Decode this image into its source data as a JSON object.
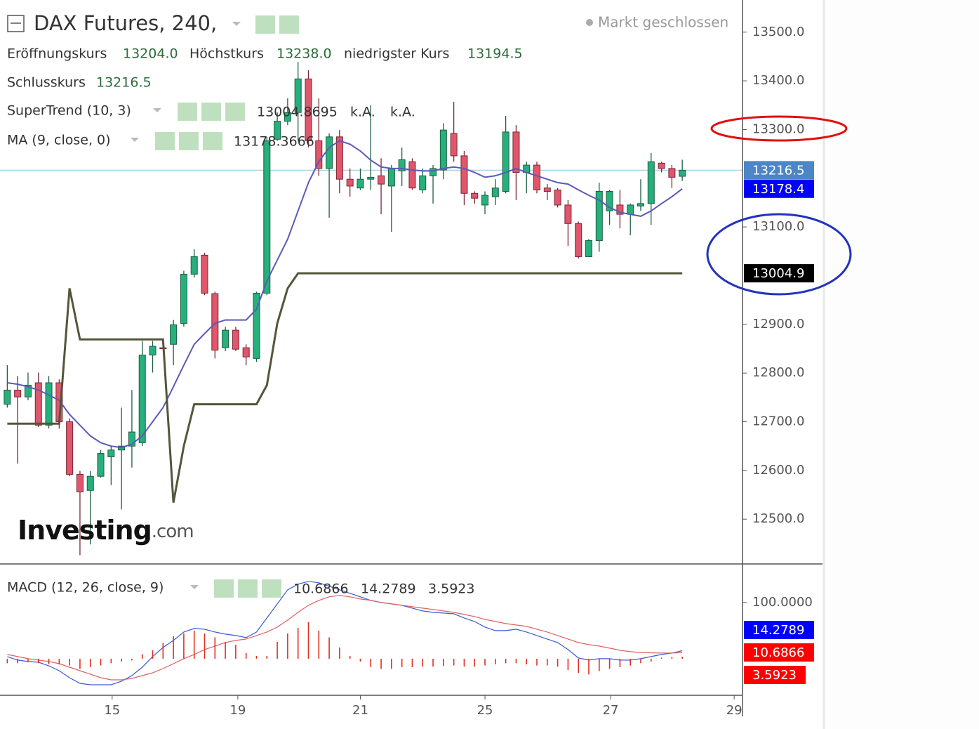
{
  "header": {
    "title": "DAX Futures, 240,",
    "status": "Markt geschlossen",
    "ohlc": [
      {
        "label": "Eröffnungskurs",
        "value": "13204.0"
      },
      {
        "label": "Höchstkurs",
        "value": "13238.0"
      },
      {
        "label": "niedrigster Kurs",
        "value": "13194.5"
      },
      {
        "label": "Schlusskurs",
        "value": "13216.5"
      }
    ]
  },
  "indicators": [
    {
      "name": "SuperTrend (10, 3)",
      "values": [
        "13004.8695",
        "k.A.",
        "k.A."
      ],
      "colors": [
        "#000000",
        "#555555",
        "#555555"
      ]
    },
    {
      "name": "MA (9, close, 0)",
      "values": [
        "13178.3666"
      ],
      "colors": [
        "#1a1aa8"
      ]
    },
    {
      "name": "MACD (12, 26, close, 9)",
      "values": [
        "10.6866",
        "14.2789",
        "3.5923"
      ],
      "colors": [
        "#e00000",
        "#1a1ad0",
        "#e00000"
      ]
    }
  ],
  "logo": [
    "Investing",
    ".com"
  ],
  "chart_data": [
    {
      "type": "candlestick",
      "x": [
        0,
        1,
        2,
        3,
        4,
        5,
        6,
        7,
        8,
        9,
        10,
        11,
        12,
        13,
        14,
        15,
        16,
        17,
        18,
        19,
        20,
        21,
        22,
        23,
        24,
        25,
        26,
        27,
        28,
        29,
        30,
        31,
        32,
        33,
        34,
        35,
        36,
        37,
        38,
        39,
        40,
        41,
        42,
        43,
        44,
        45,
        46,
        47,
        48,
        49,
        50,
        51,
        52,
        53,
        54,
        55,
        56,
        57,
        58,
        59,
        60,
        61,
        62,
        63,
        64,
        65
      ],
      "open": [
        12736,
        12765,
        12751,
        12780,
        12693,
        12780,
        12700,
        12592,
        12559,
        12588,
        12628,
        12642,
        12650,
        12657,
        12837,
        12852,
        12859,
        12902,
        13003,
        13042,
        12963,
        12852,
        12888,
        12852,
        12830,
        12964,
        13280,
        13317,
        13335,
        13404,
        13277,
        13220,
        13285,
        13198,
        13180,
        13198,
        13205,
        13184,
        13215,
        13234,
        13176,
        13205,
        13217,
        13292,
        13246,
        13169,
        13145,
        13162,
        13173,
        13295,
        13212,
        13227,
        13180,
        13176,
        13145,
        13107,
        13039,
        13072,
        13133,
        13145,
        13126,
        13143,
        13148,
        13231,
        13220,
        13204
      ],
      "high": [
        12816,
        12794,
        12801,
        12801,
        12794,
        12787,
        12707,
        12599,
        12599,
        12642,
        12650,
        12729,
        12765,
        12866,
        12866,
        12855,
        12909,
        13010,
        13054,
        13047,
        12967,
        12895,
        12895,
        12859,
        12967,
        13285,
        13335,
        13364,
        13439,
        13422,
        13364,
        13292,
        13299,
        13220,
        13220,
        13350,
        13241,
        13227,
        13263,
        13241,
        13220,
        13227,
        13313,
        13357,
        13256,
        13173,
        13173,
        13198,
        13328,
        13309,
        13234,
        13234,
        13188,
        13180,
        13155,
        13111,
        13075,
        13191,
        13176,
        13176,
        13148,
        13198,
        13252,
        13234,
        13227,
        13238
      ],
      "low": [
        12729,
        12614,
        12744,
        12689,
        12686,
        12686,
        12588,
        12426,
        12448,
        12585,
        12570,
        12520,
        12606,
        12650,
        12801,
        12849,
        12816,
        12895,
        12996,
        12960,
        12830,
        12845,
        12845,
        12816,
        12823,
        12960,
        13277,
        13309,
        13277,
        13263,
        13205,
        13119,
        13169,
        13162,
        13176,
        13176,
        13126,
        13090,
        13184,
        13176,
        13169,
        13148,
        13198,
        13234,
        13145,
        13148,
        13126,
        13145,
        13169,
        13155,
        13169,
        13169,
        13155,
        13140,
        13061,
        13035,
        13039,
        13049,
        13104,
        13097,
        13083,
        13133,
        13104,
        13212,
        13180,
        13194.5
      ],
      "close": [
        12765,
        12751,
        12775,
        12693,
        12780,
        12700,
        12592,
        12556,
        12588,
        12635,
        12642,
        12650,
        12679,
        12837,
        12855,
        12850,
        12899,
        13003,
        13039,
        12964,
        12847,
        12888,
        12849,
        12833,
        12964,
        13277,
        13317,
        13335,
        13404,
        13277,
        13220,
        13285,
        13198,
        13184,
        13198,
        13202,
        13188,
        13220,
        13238,
        13180,
        13205,
        13220,
        13299,
        13246,
        13169,
        13159,
        13165,
        13180,
        13295,
        13212,
        13227,
        13176,
        13173,
        13145,
        13107,
        13039,
        13072,
        13173,
        13173,
        13126,
        13145,
        13148,
        13234,
        13220,
        13202,
        13216.5
      ],
      "up_color": "#26b07b",
      "down_color": "#e0566b",
      "last_color": "#4a86c8",
      "series": [
        {
          "color": "#5a5ab8",
          "label_color": "#0000ff",
          "values": [
            12780,
            12777,
            12772,
            12765,
            12755,
            12744,
            12715,
            12693,
            12671,
            12657,
            12650,
            12647,
            12654,
            12671,
            12700,
            12729,
            12772,
            12816,
            12859,
            12881,
            12902,
            12909,
            12909,
            12909,
            12931,
            12989,
            13032,
            13075,
            13133,
            13191,
            13234,
            13263,
            13277,
            13270,
            13256,
            13237,
            13223,
            13220,
            13220,
            13217,
            13215,
            13215,
            13220,
            13223,
            13220,
            13212,
            13202,
            13205,
            13212,
            13220,
            13212,
            13205,
            13198,
            13191,
            13188,
            13176,
            13165,
            13155,
            13140,
            13130,
            13126,
            13122,
            13133,
            13148,
            13162,
            13178.4
          ]
        },
        {
          "color": "#55553a",
          "label_color": "#000000",
          "values": [
            12696,
            12696,
            12696,
            12696,
            12696,
            12696,
            12974,
            12869,
            12869,
            12869,
            12869,
            12869,
            12869,
            12869,
            12869,
            12869,
            12534,
            12650,
            12736,
            12736,
            12736,
            12736,
            12736,
            12736,
            12736,
            12775,
            12902,
            12974,
            13004.9,
            13004.9,
            13004.9,
            13004.9,
            13004.9,
            13004.9,
            13004.9,
            13004.9,
            13004.9,
            13004.9,
            13004.9,
            13004.9,
            13004.9,
            13004.9,
            13004.9,
            13004.9,
            13004.9,
            13004.9,
            13004.9,
            13004.9,
            13004.9,
            13004.9,
            13004.9,
            13004.9,
            13004.9,
            13004.9,
            13004.9,
            13004.9,
            13004.9,
            13004.9,
            13004.9,
            13004.9,
            13004.9,
            13004.9,
            13004.9,
            13004.9,
            13004.9,
            13004.9
          ]
        }
      ],
      "xlim": [
        -0.7,
        70.8
      ],
      "ylim": [
        12408,
        13566
      ],
      "yticks": [
        {
          "value": 12500,
          "label": "12500.0"
        },
        {
          "value": 12600,
          "label": "12600.0"
        },
        {
          "value": 12700,
          "label": "12700.0"
        },
        {
          "value": 12800,
          "label": "12800.0"
        },
        {
          "value": 12900,
          "label": "12900.0"
        },
        {
          "value": 13100,
          "label": "13100.0"
        },
        {
          "value": 13300,
          "label": "13300.0"
        },
        {
          "value": 13400,
          "label": "13400.0"
        },
        {
          "value": 13500,
          "label": "13500.0"
        }
      ]
    },
    {
      "type": "macd",
      "x": [
        0,
        1,
        2,
        3,
        4,
        5,
        6,
        7,
        8,
        9,
        10,
        11,
        12,
        13,
        14,
        15,
        16,
        17,
        18,
        19,
        20,
        21,
        22,
        23,
        24,
        25,
        26,
        27,
        28,
        29,
        30,
        31,
        32,
        33,
        34,
        35,
        36,
        37,
        38,
        39,
        40,
        41,
        42,
        43,
        44,
        45,
        46,
        47,
        48,
        49,
        50,
        51,
        52,
        53,
        54,
        55,
        56,
        57,
        58,
        59,
        60,
        61,
        62,
        63,
        64,
        65
      ],
      "series": [
        {
          "style": "line",
          "color": "#3a5ad8",
          "label_color": "#0000ff",
          "values": [
            3.75,
            -2.5,
            -5,
            -6.25,
            -12.5,
            -21.25,
            -33.75,
            -43.75,
            -46.25,
            -46.25,
            -46.25,
            -40,
            -30,
            -15,
            3.75,
            20,
            32.5,
            47.5,
            53.75,
            52.5,
            47.5,
            43.75,
            41.25,
            37.5,
            47.5,
            72.5,
            97.5,
            122.5,
            132.5,
            137.5,
            135,
            128.75,
            122.5,
            116.25,
            110,
            103.75,
            100,
            97.5,
            95,
            90,
            85,
            82.5,
            81.25,
            80,
            72.5,
            66.25,
            56.25,
            50,
            50,
            52.5,
            47.5,
            41.25,
            35,
            28.75,
            16.25,
            1.25,
            -2.5,
            0,
            0,
            -2.5,
            -2.5,
            0,
            3.75,
            7.5,
            10,
            14.2789
          ]
        },
        {
          "style": "line",
          "color": "#e06060",
          "label_color": "#ff0000",
          "values": [
            7.5,
            3.75,
            0,
            -2.5,
            -5,
            -8.75,
            -15,
            -21.25,
            -27.5,
            -33.75,
            -37.5,
            -37.5,
            -35,
            -30,
            -25,
            -17.5,
            -8.75,
            0,
            7.5,
            16.25,
            22.5,
            28.75,
            32.5,
            35,
            41.25,
            47.5,
            56.25,
            68.75,
            82.5,
            95,
            103.75,
            110,
            112.5,
            110,
            106.25,
            103.75,
            100,
            97.5,
            95,
            92.5,
            90,
            87.5,
            85,
            82.5,
            78.75,
            75,
            70,
            66.25,
            62.5,
            60,
            57.5,
            52.5,
            47.5,
            41.25,
            35,
            28.75,
            25,
            22.5,
            18.75,
            15,
            12.5,
            11,
            10.5,
            10,
            10.2,
            10.6866
          ]
        },
        {
          "style": "histogram",
          "color": "#e03020",
          "label_color": "#ff0000",
          "values": [
            -8,
            -8,
            -6,
            -8,
            -10,
            -10,
            -12,
            -18,
            -15,
            -12,
            -8,
            -5,
            -3,
            8,
            15,
            28,
            40,
            45,
            50,
            45,
            38,
            30,
            25,
            10,
            5,
            5,
            30,
            45,
            55,
            65,
            50,
            38,
            20,
            5,
            -5,
            -15,
            -18,
            -18,
            -15,
            -15,
            -14,
            -14,
            -13,
            -12,
            -14,
            -14,
            -12,
            -10,
            -8,
            -8,
            -10,
            -12,
            -12,
            -14,
            -20,
            -25,
            -28,
            -22,
            -18,
            -15,
            -12,
            -8,
            -5,
            2,
            3,
            3.5923
          ]
        }
      ],
      "xlim": [
        -0.7,
        70.8
      ],
      "xticks": [
        {
          "value": 10.1,
          "label": "15"
        },
        {
          "value": 22.2,
          "label": "19"
        },
        {
          "value": 34,
          "label": "21"
        },
        {
          "value": 46,
          "label": "25"
        },
        {
          "value": 58.1,
          "label": "27"
        },
        {
          "value": 70,
          "label": "29"
        }
      ],
      "ylim": [
        -65,
        166
      ],
      "yticks": [
        {
          "value": 100,
          "label": "100.0000"
        }
      ]
    }
  ]
}
